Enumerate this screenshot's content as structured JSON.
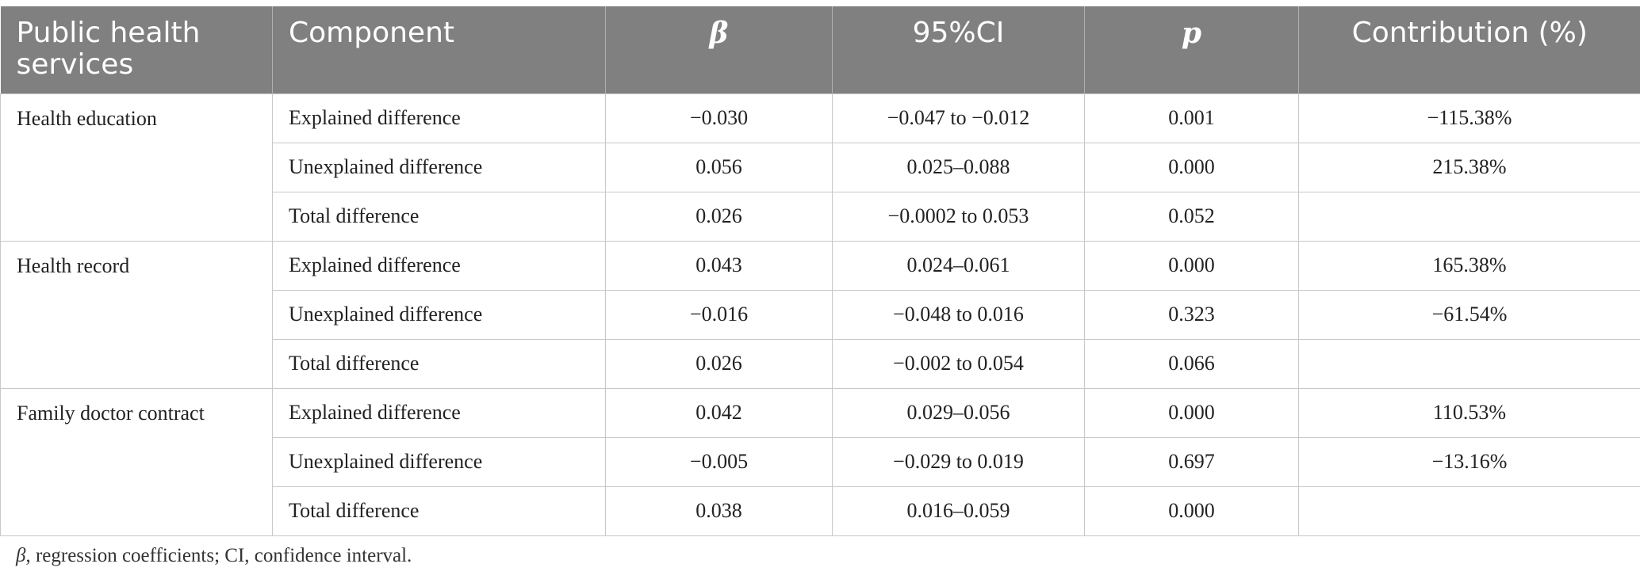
{
  "table": {
    "headers": {
      "services": "Public health services",
      "component": "Component",
      "beta": "β",
      "ci": "95%CI",
      "p": "p",
      "contribution": "Contribution (%)"
    },
    "groups": [
      {
        "name": "Health education",
        "rows": [
          {
            "component": "Explained difference",
            "beta": "−0.030",
            "ci": "−0.047 to −0.012",
            "p": "0.001",
            "contribution": "−115.38%"
          },
          {
            "component": "Unexplained difference",
            "beta": "0.056",
            "ci": "0.025–0.088",
            "p": "0.000",
            "contribution": "215.38%"
          },
          {
            "component": "Total difference",
            "beta": "0.026",
            "ci": "−0.0002 to 0.053",
            "p": "0.052",
            "contribution": ""
          }
        ]
      },
      {
        "name": "Health record",
        "rows": [
          {
            "component": "Explained difference",
            "beta": "0.043",
            "ci": "0.024–0.061",
            "p": "0.000",
            "contribution": "165.38%"
          },
          {
            "component": "Unexplained difference",
            "beta": "−0.016",
            "ci": "−0.048 to 0.016",
            "p": "0.323",
            "contribution": "−61.54%"
          },
          {
            "component": "Total difference",
            "beta": "0.026",
            "ci": "−0.002 to 0.054",
            "p": "0.066",
            "contribution": ""
          }
        ]
      },
      {
        "name": "Family doctor contract",
        "rows": [
          {
            "component": "Explained difference",
            "beta": "0.042",
            "ci": "0.029–0.056",
            "p": "0.000",
            "contribution": "110.53%"
          },
          {
            "component": "Unexplained difference",
            "beta": "−0.005",
            "ci": "−0.029 to 0.019",
            "p": "0.697",
            "contribution": "−13.16%"
          },
          {
            "component": "Total difference",
            "beta": "0.038",
            "ci": "0.016–0.059",
            "p": "0.000",
            "contribution": ""
          }
        ]
      }
    ]
  },
  "footnote": {
    "beta_symbol": "β",
    "text": ", regression coefficients; CI, confidence interval."
  }
}
